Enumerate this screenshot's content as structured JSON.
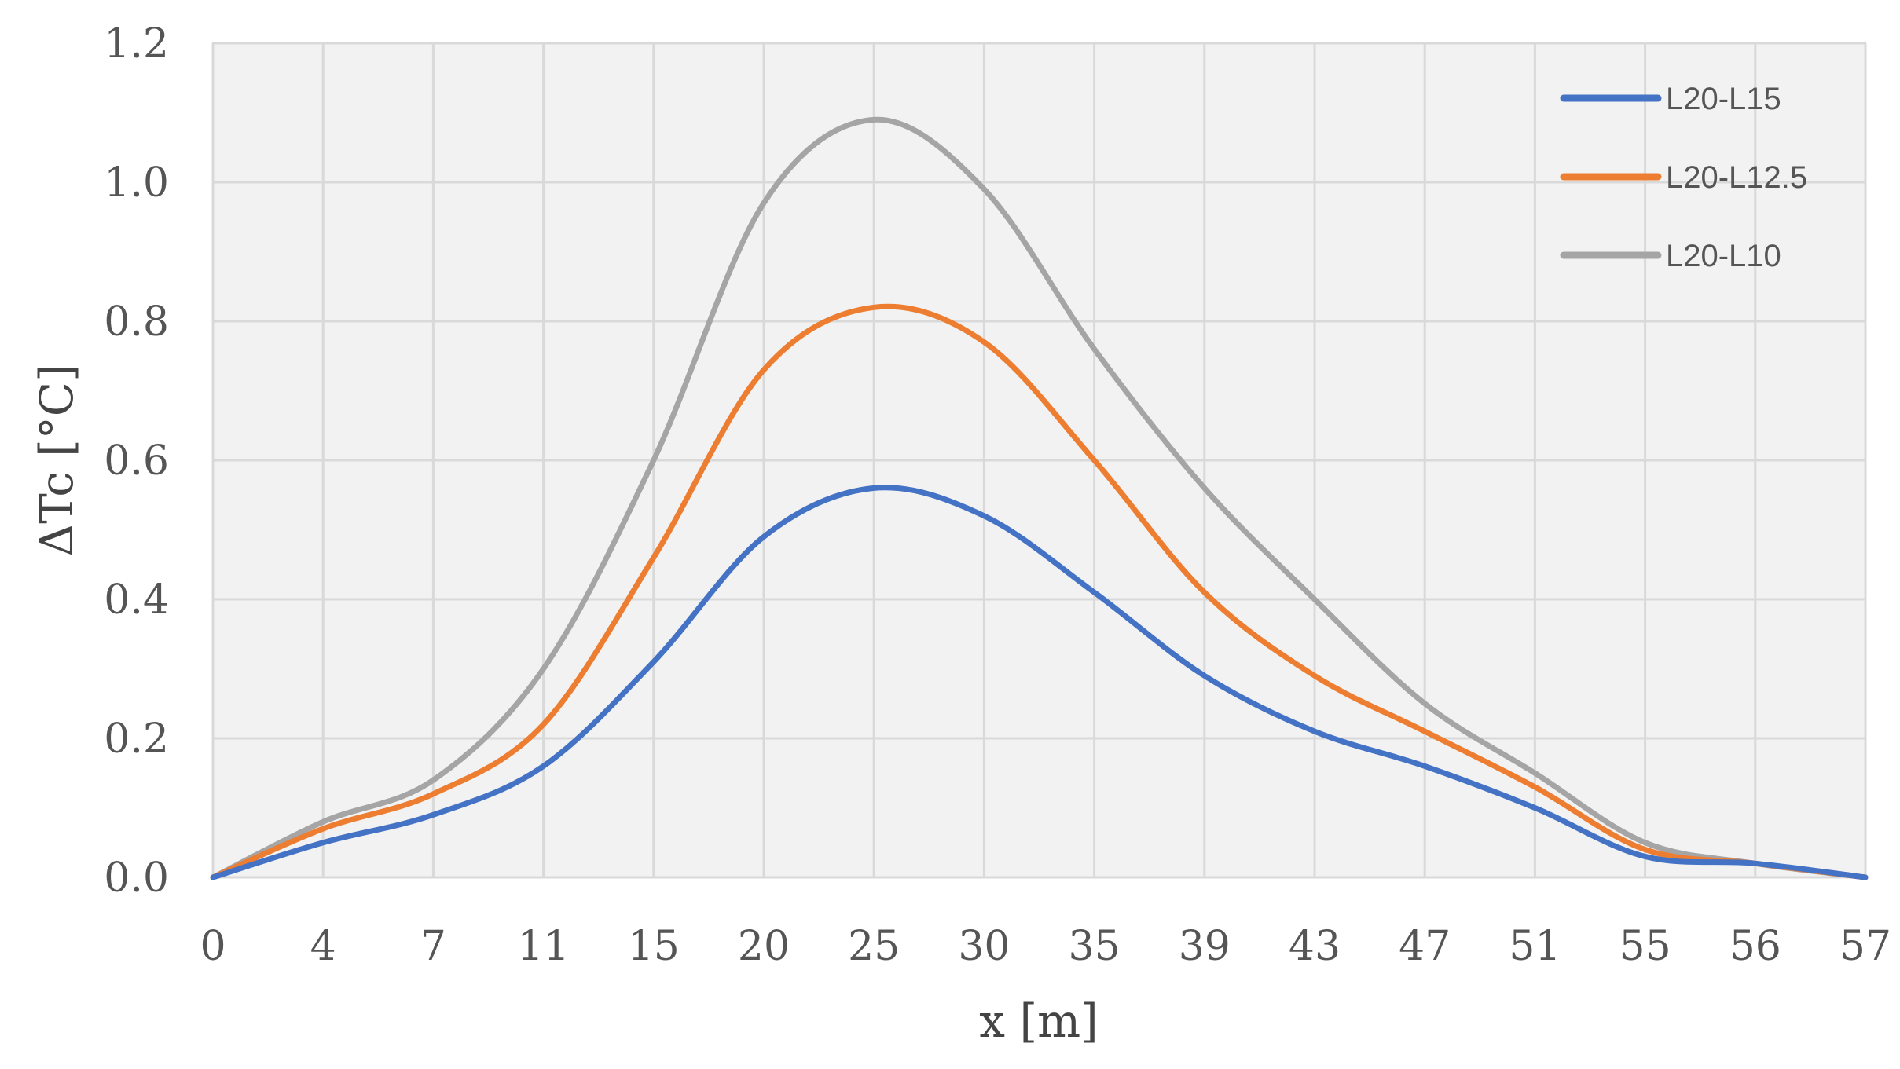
{
  "chart_data": {
    "type": "line",
    "title": "",
    "xlabel": "x [m]",
    "ylabel": "ΔTc [°C]",
    "categories": [
      "0",
      "4",
      "7",
      "11",
      "15",
      "20",
      "25",
      "30",
      "35",
      "39",
      "43",
      "47",
      "51",
      "55",
      "56",
      "57"
    ],
    "ylim": [
      0,
      1.2
    ],
    "yticks": [
      "0.0",
      "0.2",
      "0.4",
      "0.6",
      "0.8",
      "1.0",
      "1.2"
    ],
    "grid": true,
    "legend_position": "top-right",
    "series": [
      {
        "name": "L20-L15",
        "color": "#4472C4",
        "values": [
          0.0,
          0.05,
          0.09,
          0.16,
          0.31,
          0.49,
          0.56,
          0.52,
          0.41,
          0.29,
          0.21,
          0.16,
          0.1,
          0.03,
          0.02,
          0.0
        ]
      },
      {
        "name": "L20-L12.5",
        "color": "#ED7D31",
        "values": [
          0.0,
          0.07,
          0.12,
          0.22,
          0.46,
          0.73,
          0.82,
          0.77,
          0.6,
          0.41,
          0.29,
          0.21,
          0.13,
          0.04,
          0.02,
          0.0
        ]
      },
      {
        "name": "L20-L10",
        "color": "#A5A5A5",
        "values": [
          0.0,
          0.08,
          0.14,
          0.3,
          0.6,
          0.97,
          1.09,
          0.99,
          0.76,
          0.56,
          0.4,
          0.25,
          0.15,
          0.05,
          0.02,
          0.0
        ]
      }
    ]
  }
}
